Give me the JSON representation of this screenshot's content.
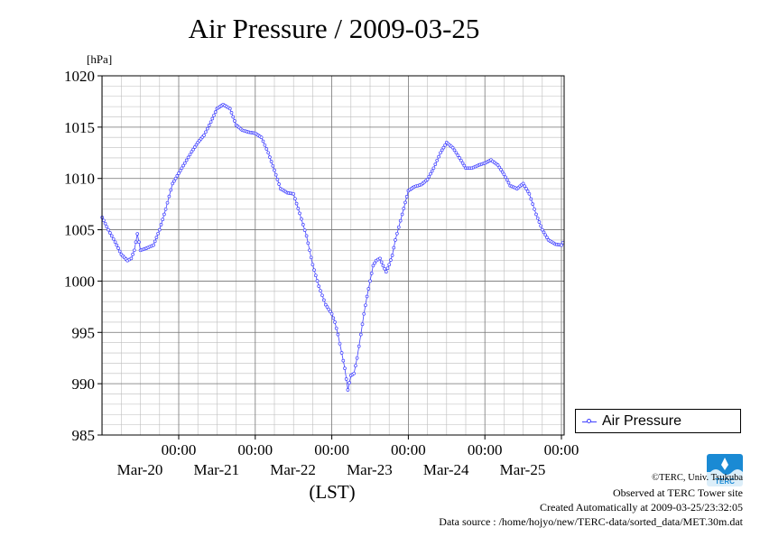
{
  "title": "Air Pressure / 2009-03-25",
  "chart_data": {
    "type": "line",
    "title": "Air Pressure / 2009-03-25",
    "ylabel": "[hPa]",
    "xlabel": "(LST)",
    "ylim": [
      985,
      1020
    ],
    "yticks": [
      985,
      990,
      995,
      1000,
      1005,
      1010,
      1015,
      1020
    ],
    "xlim_days": [
      0,
      6
    ],
    "xticks": [
      {
        "time": "00:00",
        "date": "Mar-20"
      },
      {
        "time": "00:00",
        "date": "Mar-21"
      },
      {
        "time": "00:00",
        "date": "Mar-22"
      },
      {
        "time": "00:00",
        "date": "Mar-23"
      },
      {
        "time": "00:00",
        "date": "Mar-24"
      },
      {
        "time": "00:00",
        "date": "Mar-25"
      }
    ],
    "grid": true,
    "legend_position": "right",
    "series": [
      {
        "name": "Air Pressure",
        "color": "#4040ff",
        "points": [
          [
            0.0,
            1006.2
          ],
          [
            0.08,
            1005.0
          ],
          [
            0.17,
            1003.8
          ],
          [
            0.25,
            1002.6
          ],
          [
            0.33,
            1002.0
          ],
          [
            0.38,
            1002.2
          ],
          [
            0.42,
            1003.0
          ],
          [
            0.46,
            1004.6
          ],
          [
            0.5,
            1003.0
          ],
          [
            0.58,
            1003.2
          ],
          [
            0.67,
            1003.5
          ],
          [
            0.75,
            1005.0
          ],
          [
            0.83,
            1007.0
          ],
          [
            0.92,
            1009.5
          ],
          [
            1.0,
            1010.5
          ],
          [
            1.08,
            1011.5
          ],
          [
            1.17,
            1012.6
          ],
          [
            1.25,
            1013.5
          ],
          [
            1.33,
            1014.2
          ],
          [
            1.42,
            1015.5
          ],
          [
            1.5,
            1016.8
          ],
          [
            1.58,
            1017.2
          ],
          [
            1.67,
            1016.8
          ],
          [
            1.75,
            1015.2
          ],
          [
            1.83,
            1014.7
          ],
          [
            1.92,
            1014.5
          ],
          [
            2.0,
            1014.4
          ],
          [
            2.08,
            1014.0
          ],
          [
            2.17,
            1012.5
          ],
          [
            2.25,
            1010.8
          ],
          [
            2.33,
            1009.0
          ],
          [
            2.42,
            1008.6
          ],
          [
            2.5,
            1008.5
          ],
          [
            2.58,
            1006.6
          ],
          [
            2.67,
            1004.4
          ],
          [
            2.75,
            1001.6
          ],
          [
            2.83,
            999.5
          ],
          [
            2.92,
            997.7
          ],
          [
            3.0,
            996.8
          ],
          [
            3.04,
            996.0
          ],
          [
            3.08,
            994.8
          ],
          [
            3.13,
            993.0
          ],
          [
            3.17,
            991.5
          ],
          [
            3.21,
            989.4
          ],
          [
            3.25,
            990.8
          ],
          [
            3.29,
            991.0
          ],
          [
            3.33,
            992.5
          ],
          [
            3.38,
            994.8
          ],
          [
            3.42,
            996.8
          ],
          [
            3.46,
            998.5
          ],
          [
            3.5,
            1000.0
          ],
          [
            3.54,
            1001.5
          ],
          [
            3.58,
            1002.0
          ],
          [
            3.63,
            1002.2
          ],
          [
            3.67,
            1001.5
          ],
          [
            3.71,
            1000.9
          ],
          [
            3.75,
            1001.6
          ],
          [
            3.79,
            1002.5
          ],
          [
            3.83,
            1004.0
          ],
          [
            3.92,
            1006.5
          ],
          [
            4.0,
            1008.8
          ],
          [
            4.08,
            1009.2
          ],
          [
            4.17,
            1009.4
          ],
          [
            4.25,
            1009.9
          ],
          [
            4.33,
            1011.0
          ],
          [
            4.42,
            1012.5
          ],
          [
            4.5,
            1013.5
          ],
          [
            4.58,
            1013.0
          ],
          [
            4.67,
            1012.0
          ],
          [
            4.75,
            1011.0
          ],
          [
            4.83,
            1011.0
          ],
          [
            4.92,
            1011.3
          ],
          [
            5.0,
            1011.5
          ],
          [
            5.08,
            1011.8
          ],
          [
            5.17,
            1011.3
          ],
          [
            5.25,
            1010.4
          ],
          [
            5.33,
            1009.3
          ],
          [
            5.42,
            1009.0
          ],
          [
            5.5,
            1009.5
          ],
          [
            5.58,
            1008.5
          ],
          [
            5.67,
            1006.5
          ],
          [
            5.75,
            1005.0
          ],
          [
            5.83,
            1004.0
          ],
          [
            5.92,
            1003.6
          ],
          [
            6.0,
            1003.5
          ],
          [
            6.08,
            1004.5
          ],
          [
            6.17,
            1005.0
          ],
          [
            6.21,
            1005.1
          ]
        ]
      }
    ]
  },
  "legend": {
    "label": "Air Pressure"
  },
  "credits": {
    "copyright": "©TERC, Univ. Tsukuba",
    "observed": "Observed at TERC Tower site",
    "created": "Created Automatically at 2009-03-25/23:32:05",
    "source": "Data source : /home/hojyo/new/TERC-data/sorted_data/MET.30m.dat"
  },
  "logo": {
    "text": "TERC",
    "color": "#1a8ad4"
  }
}
